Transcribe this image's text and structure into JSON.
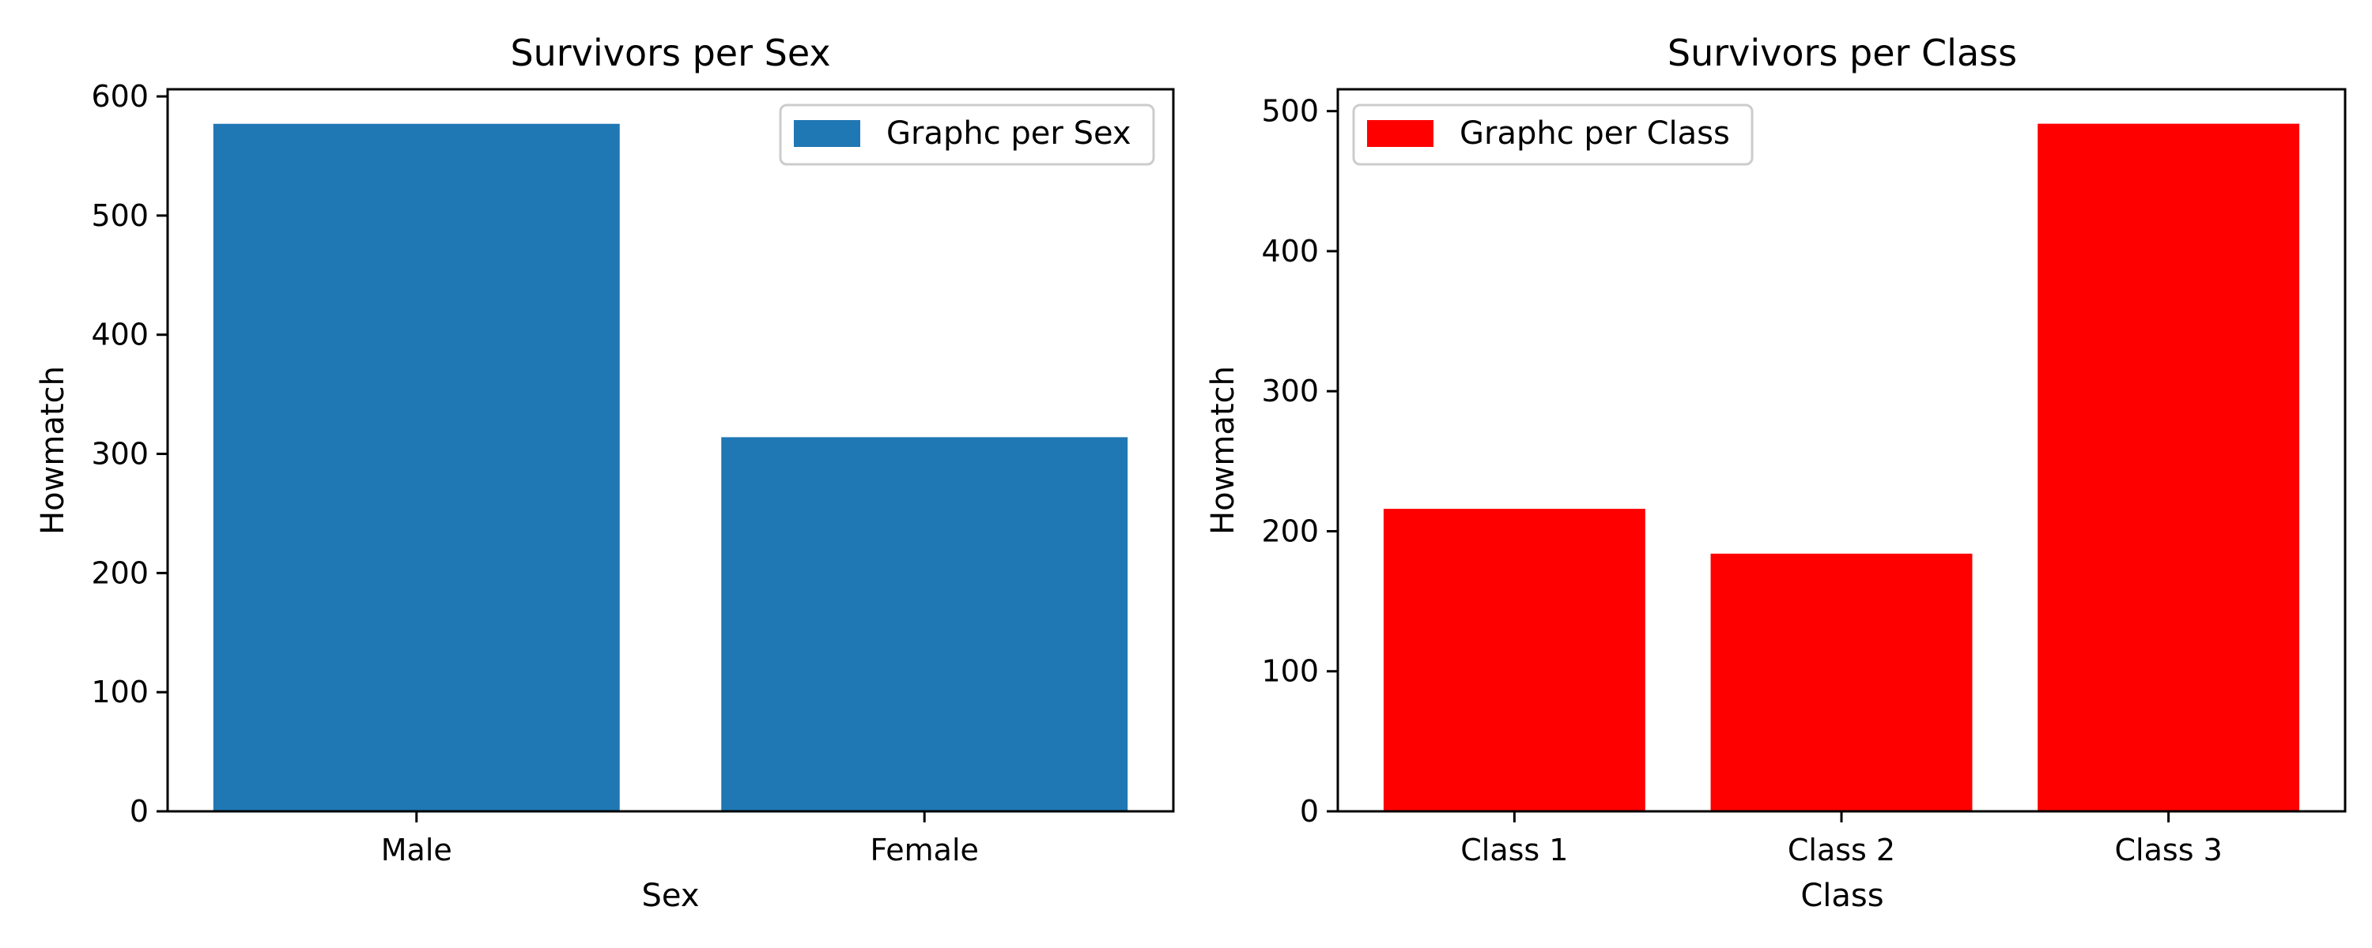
{
  "chart_data": [
    {
      "type": "bar",
      "title": "Survivors per Sex",
      "xlabel": "Sex",
      "ylabel": "Howmatch",
      "categories": [
        "Male",
        "Female"
      ],
      "series": [
        {
          "name": "Graphc per Sex",
          "values": [
            577,
            314
          ],
          "color": "#1f77b4"
        }
      ],
      "ylim": [
        0,
        606
      ],
      "yticks": [
        0,
        100,
        200,
        300,
        400,
        500,
        600
      ],
      "legend": "top-right",
      "grid": false
    },
    {
      "type": "bar",
      "title": "Survivors per Class",
      "xlabel": "Class",
      "ylabel": "Howmatch",
      "categories": [
        "Class 1",
        "Class 2",
        "Class 3"
      ],
      "series": [
        {
          "name": "Graphc per Class",
          "values": [
            216,
            184,
            491
          ],
          "color": "#ff0000"
        }
      ],
      "ylim": [
        0,
        515.6
      ],
      "yticks": [
        0,
        100,
        200,
        300,
        400,
        500
      ],
      "legend": "top-left",
      "grid": false
    }
  ]
}
